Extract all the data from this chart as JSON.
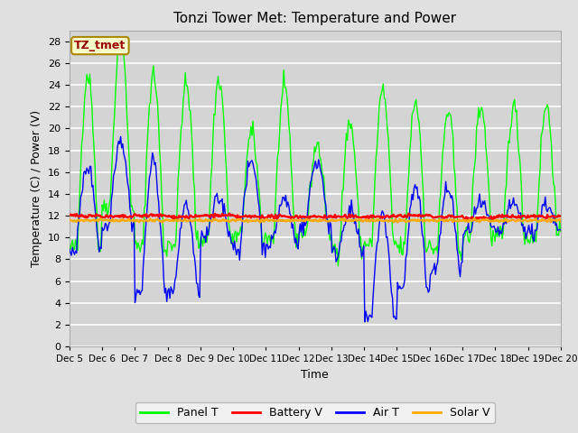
{
  "title": "Tonzi Tower Met: Temperature and Power",
  "xlabel": "Time",
  "ylabel": "Temperature (C) / Power (V)",
  "ylim": [
    0,
    29
  ],
  "yticks": [
    0,
    2,
    4,
    6,
    8,
    10,
    12,
    14,
    16,
    18,
    20,
    22,
    24,
    26,
    28
  ],
  "xtick_labels": [
    "Dec 5",
    "Dec 6",
    "Dec 7",
    "Dec 8",
    "Dec 9",
    "Dec 10",
    "Dec 11",
    "Dec 12",
    "Dec 13",
    "Dec 14",
    "Dec 15",
    "Dec 16",
    "Dec 17",
    "Dec 18",
    "Dec 19",
    "Dec 20"
  ],
  "legend_items": [
    {
      "label": "Panel T",
      "color": "#00ff00"
    },
    {
      "label": "Battery V",
      "color": "#ff0000"
    },
    {
      "label": "Air T",
      "color": "#0000ff"
    },
    {
      "label": "Solar V",
      "color": "#ffaa00"
    }
  ],
  "annotation_text": "TZ_tmet",
  "bg_color": "#e0e0e0",
  "plot_bg_color": "#d4d4d4",
  "grid_color": "#ffffff",
  "battery_v_mean": 11.9,
  "solar_v_mean": 11.55,
  "panel_peaks": [
    25.0,
    28.0,
    25.0,
    24.0,
    24.5,
    19.5,
    23.5,
    18.5,
    20.5,
    23.5,
    22.5,
    21.5,
    22.0
  ],
  "panel_mins": [
    9.0,
    13.0,
    9.0,
    9.5,
    10.0,
    10.0,
    10.0,
    10.5,
    9.0,
    9.5,
    9.0,
    9.0,
    10.0
  ],
  "air_peaks": [
    16.5,
    19.0,
    17.0,
    13.0,
    13.5,
    17.0,
    13.5,
    17.0,
    12.5,
    12.0,
    14.5,
    14.5,
    13.0
  ],
  "air_mins": [
    9.0,
    11.0,
    5.0,
    5.0,
    10.0,
    9.0,
    9.5,
    11.0,
    8.5,
    2.5,
    5.5,
    7.0,
    10.5
  ]
}
